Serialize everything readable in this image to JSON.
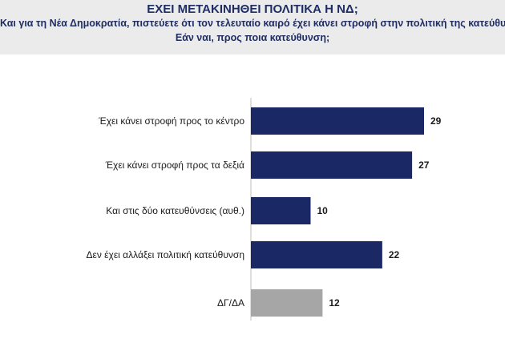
{
  "header": {
    "title": "ΕΧΕΙ ΜΕΤΑΚΙΝΗΘΕΙ ΠΟΛΙΤΙΚΑ Η ΝΔ;",
    "subtitle_line1": "Και για τη Νέα Δημοκρατία, πιστεύετε ότι τον τελευταίο καιρό έχει κάνει στροφή στην πολιτική της κατεύθυνση;",
    "subtitle_line2": "Εάν ναι, προς ποια κατεύθυνση;"
  },
  "chart_data": {
    "type": "bar",
    "orientation": "horizontal",
    "categories": [
      "Έχει κάνει στροφή προς το κέντρο",
      "Έχει κάνει στροφή προς τα δεξιά",
      "Και στις δύο κατευθύνσεις (αυθ.)",
      "Δεν έχει αλλάξει πολιτική κατεύθυνση",
      "ΔΓ/ΔΑ"
    ],
    "values": [
      29,
      27,
      10,
      22,
      12
    ],
    "bar_colors": [
      "#1b2866",
      "#1b2866",
      "#1b2866",
      "#1b2866",
      "#a6a6a6"
    ],
    "title": "ΕΧΕΙ ΜΕΤΑΚΙΝΗΘΕΙ ΠΟΛΙΤΙΚΑ Η ΝΔ;",
    "xlabel": "",
    "ylabel": "",
    "xlim": [
      0,
      29
    ],
    "grid": false,
    "legend": "none"
  }
}
